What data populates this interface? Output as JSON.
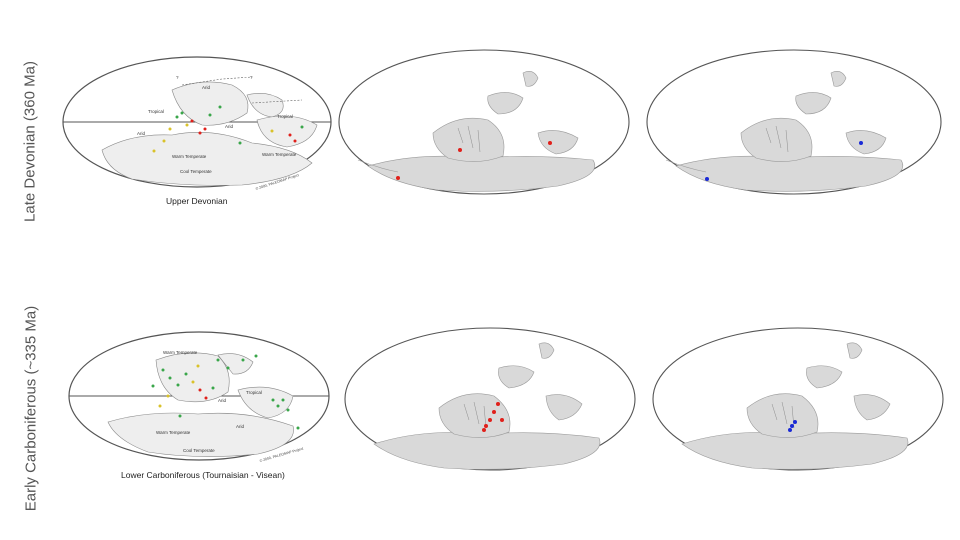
{
  "rows": [
    {
      "label": "Late Devonian (360 Ma)",
      "caption": "Upper Devonian",
      "scotese_labels": [
        "?",
        "?",
        "Arid",
        "Tropical",
        "Tropical",
        "Arid",
        "Arid",
        "Warm Temperate",
        "Warm Temperate",
        "Cool Temperate"
      ],
      "copyright": "© 2000, PALEOMAP Project",
      "occurrences_red": 3,
      "occurrences_blue": 2
    },
    {
      "label": "Early Carboniferous (~335 Ma)",
      "caption": "Lower Carboniferous (Tournaisian - Visean)",
      "scotese_labels": [
        "Warm Temperate",
        "Tropical",
        "Arid",
        "Arid",
        "Warm Temperate",
        "Cool Temperate"
      ],
      "copyright": "© 2000, PALEOMAP Project",
      "occurrences_red": 6,
      "occurrences_blue": 3
    }
  ],
  "colors": {
    "land": "#d9d9d9",
    "land_stroke": "#9a9a9a",
    "outline": "#555555",
    "red_point": "#e0201b",
    "blue_point": "#1a2ad6",
    "green_point": "#3aa64a",
    "yellow_point": "#d9c22a"
  },
  "map_projection": "Mollweide"
}
